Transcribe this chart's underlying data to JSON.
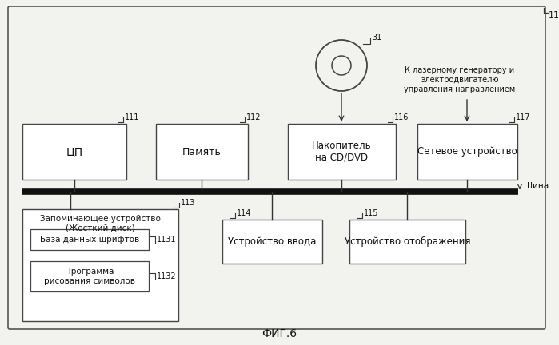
{
  "bg_color": "#f2f2ee",
  "outer_border_color": "#555555",
  "box_color": "#ffffff",
  "box_edge_color": "#444444",
  "line_color": "#333333",
  "bus_color": "#111111",
  "text_color": "#111111",
  "title": "ФИГ.6",
  "label_11": "11",
  "label_31": "31",
  "label_111": "111",
  "label_112": "112",
  "label_113": "113",
  "label_114": "114",
  "label_115": "115",
  "label_116": "116",
  "label_117": "117",
  "label_1131": "1131",
  "label_1132": "1132",
  "text_cpu": "ЦП",
  "text_mem": "Память",
  "text_cd": "Накопитель\nна CD/DVD",
  "text_net": "Сетевое устройство",
  "text_store": "Запоминающее устройство\n(Жесткий диск)",
  "text_input": "Устройство ввода",
  "text_display": "Устройство отображения",
  "text_font_db": "База данных шрифтов",
  "text_prog": "Программа\nрисования символов",
  "text_bus": "Шина",
  "text_laser": "К лазерному генератору и\nэлектродвигателю\nуправления направлением"
}
